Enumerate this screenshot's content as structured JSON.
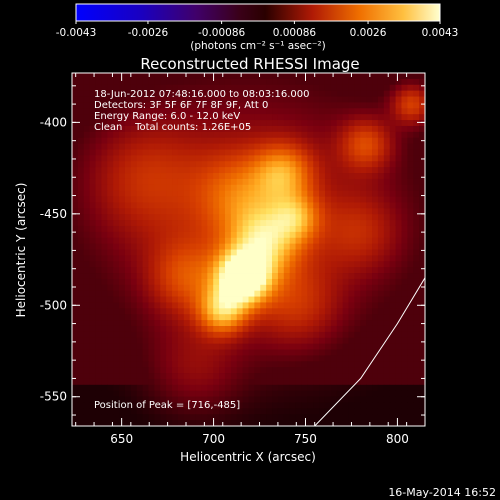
{
  "colorbar": {
    "tick_labels": [
      "-0.0043",
      "-0.0026",
      "-0.00086",
      "0.00086",
      "0.0026",
      "0.0043"
    ],
    "ticks": [
      -0.0043,
      -0.0026,
      -0.00086,
      0.00086,
      0.0026,
      0.0043
    ],
    "range": [
      -0.0043,
      0.0043
    ],
    "unit_label": "(photons cm⁻² s⁻¹ asec⁻²)"
  },
  "chart_data": {
    "type": "heatmap",
    "title": "Reconstructed RHESSI Image",
    "xlabel": "Heliocentric X (arcsec)",
    "ylabel": "Heliocentric Y (arcsec)",
    "xlim": [
      623,
      815
    ],
    "ylim": [
      -566,
      -373
    ],
    "xticks": [
      650,
      700,
      750,
      800
    ],
    "yticks": [
      -400,
      -450,
      -500,
      -550
    ],
    "annotations": [
      "18-Jun-2012 07:48:16.000 to 08:03:16.000",
      "Detectors: 3F 5F 6F 7F 8F 9F, Att 0",
      "Energy Range: 6.0 - 12.0 keV",
      "Clean    Total counts: 1.26E+05"
    ],
    "peak_label": "Position of Peak = [716,-485]",
    "peak": [
      716,
      -485
    ],
    "sources": [
      {
        "x": 716,
        "y": -485,
        "amp": 1.0,
        "sigma": 10
      },
      {
        "x": 705,
        "y": -503,
        "amp": 0.55,
        "sigma": 9
      },
      {
        "x": 728,
        "y": -465,
        "amp": 0.55,
        "sigma": 13
      },
      {
        "x": 738,
        "y": -428,
        "amp": 0.42,
        "sigma": 11
      },
      {
        "x": 745,
        "y": -452,
        "amp": 0.38,
        "sigma": 9
      },
      {
        "x": 783,
        "y": -412,
        "amp": 0.32,
        "sigma": 10
      },
      {
        "x": 808,
        "y": -390,
        "amp": 0.36,
        "sigma": 8
      },
      {
        "x": 685,
        "y": -485,
        "amp": 0.28,
        "sigma": 14
      },
      {
        "x": 715,
        "y": -440,
        "amp": 0.3,
        "sigma": 16
      },
      {
        "x": 662,
        "y": -430,
        "amp": 0.2,
        "sigma": 22
      },
      {
        "x": 745,
        "y": -500,
        "amp": 0.22,
        "sigma": 16
      },
      {
        "x": 690,
        "y": -535,
        "amp": 0.16,
        "sigma": 18
      },
      {
        "x": 780,
        "y": -460,
        "amp": 0.18,
        "sigma": 15
      }
    ],
    "limb_curve": [
      [
        755,
        -566
      ],
      [
        780,
        -540
      ],
      [
        800,
        -510
      ],
      [
        815,
        -485
      ]
    ],
    "colormap": [
      "#000000",
      "#3a0008",
      "#7a0010",
      "#b01a05",
      "#d84000",
      "#f07000",
      "#ffa820",
      "#ffe060",
      "#ffffc8"
    ]
  },
  "footer": {
    "date": "16-May-2014 16:52"
  }
}
